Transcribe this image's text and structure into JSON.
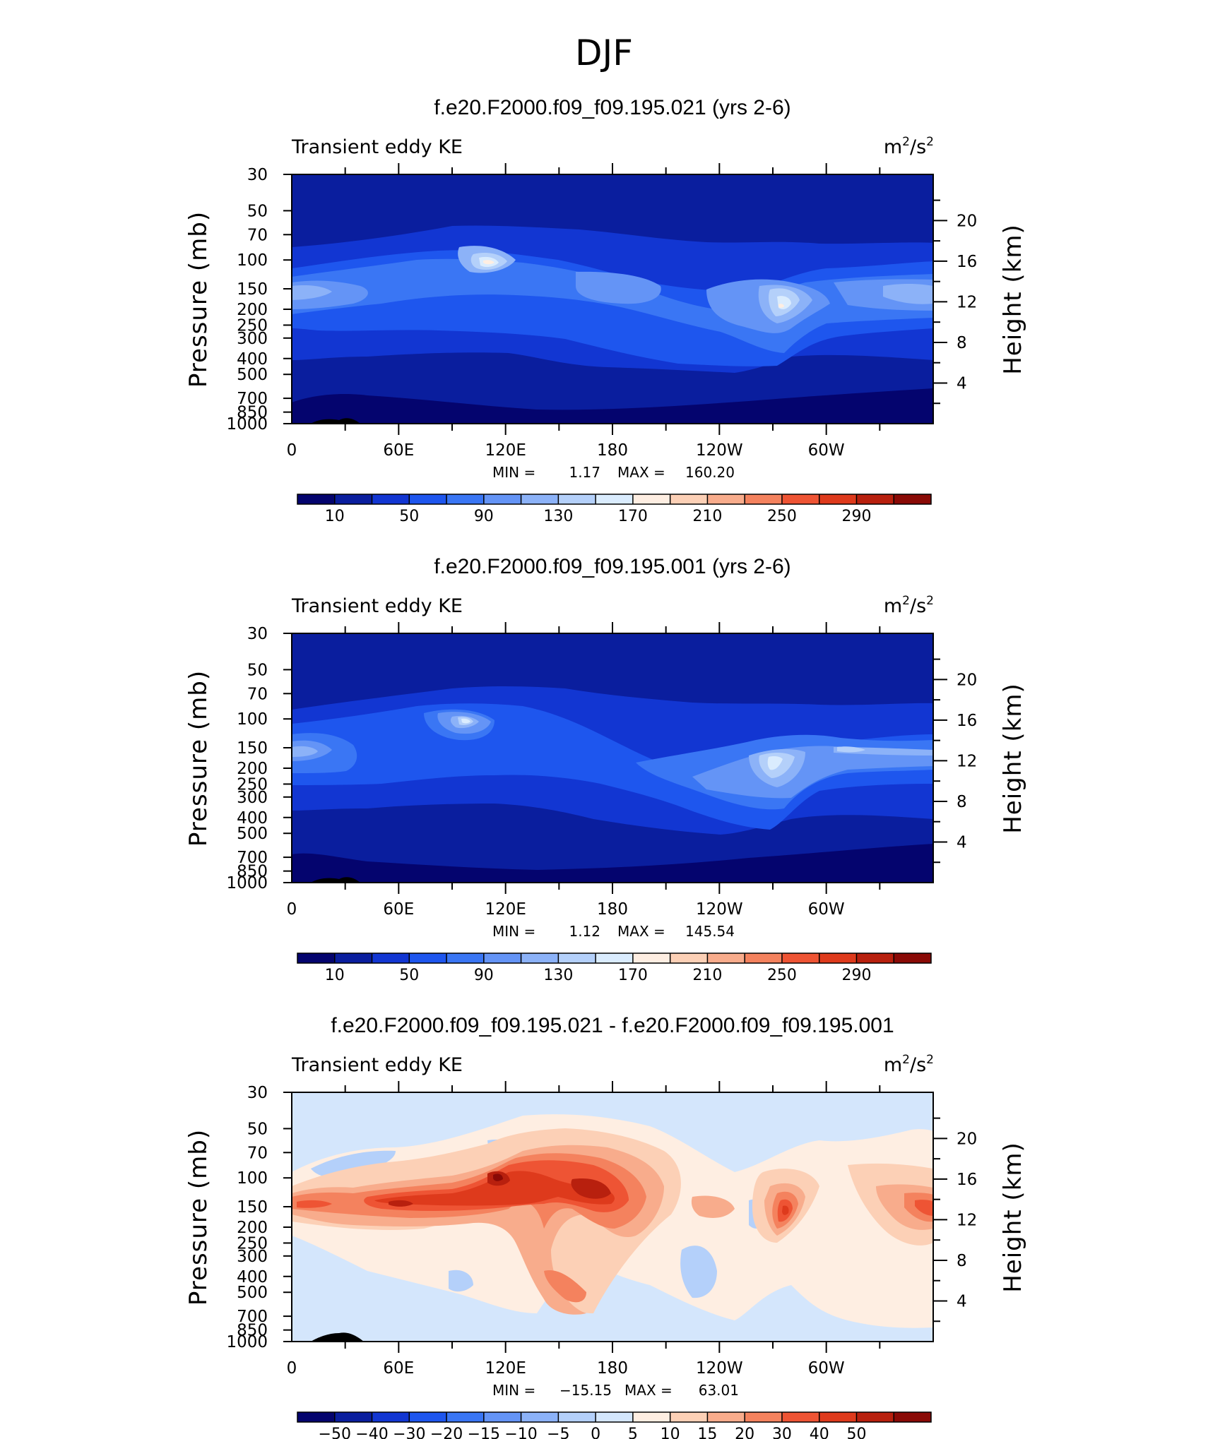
{
  "figure": {
    "title": "DJF"
  },
  "colors": {
    "seq": [
      "#04046e",
      "#0a1e9e",
      "#1236d2",
      "#1e56ee",
      "#3a76f4",
      "#6494f6",
      "#8cb2f8",
      "#b4d0fa",
      "#daecfe",
      "#feeee2",
      "#fcd0b6",
      "#f8ac8c",
      "#f4825e",
      "#ee5434",
      "#de3a1c",
      "#b8200e",
      "#8a0a06"
    ],
    "diff": [
      "#04046e",
      "#0a1e9e",
      "#1236d2",
      "#1e56ee",
      "#3a76f4",
      "#6494f6",
      "#8cb2f8",
      "#b4d0fa",
      "#d4e6fc",
      "#feeee2",
      "#fcd0b6",
      "#f8ac8c",
      "#f4825e",
      "#ee5434",
      "#de3a1c",
      "#b8200e",
      "#8a0a06"
    ]
  },
  "chart_data": [
    {
      "type": "heatmap",
      "title": "f.e20.F2000.f09_f09.195.021 (yrs 2-6)",
      "left_label": "Transient eddy KE",
      "units": "m²/s²",
      "units_base": "m",
      "units_mid": "/s",
      "units_sup": "2",
      "ylabel": "Pressure (mb)",
      "ylabel_right": "Height (km)",
      "x_ticks": [
        "0",
        "60E",
        "120E",
        "180",
        "120W",
        "60W"
      ],
      "y_ticks": [
        "30",
        "50",
        "70",
        "100",
        "150",
        "200",
        "250",
        "300",
        "400",
        "500",
        "700",
        "850",
        "1000"
      ],
      "y_ticks_right": [
        "20",
        "16",
        "12",
        "8",
        "4"
      ],
      "min_label": "MIN = ",
      "min_value": "1.17",
      "max_label": "MAX = ",
      "max_value": "160.20",
      "levels_labels": [
        "10",
        "50",
        "90",
        "130",
        "170",
        "210",
        "250",
        "290"
      ],
      "palette": "seq"
    },
    {
      "type": "heatmap",
      "title": "f.e20.F2000.f09_f09.195.001 (yrs 2-6)",
      "left_label": "Transient eddy KE",
      "units": "m²/s²",
      "units_base": "m",
      "units_mid": "/s",
      "units_sup": "2",
      "ylabel": "Pressure (mb)",
      "ylabel_right": "Height (km)",
      "x_ticks": [
        "0",
        "60E",
        "120E",
        "180",
        "120W",
        "60W"
      ],
      "y_ticks": [
        "30",
        "50",
        "70",
        "100",
        "150",
        "200",
        "250",
        "300",
        "400",
        "500",
        "700",
        "850",
        "1000"
      ],
      "y_ticks_right": [
        "20",
        "16",
        "12",
        "8",
        "4"
      ],
      "min_label": "MIN = ",
      "min_value": "1.12",
      "max_label": "MAX = ",
      "max_value": "145.54",
      "levels_labels": [
        "10",
        "50",
        "90",
        "130",
        "170",
        "210",
        "250",
        "290"
      ],
      "palette": "seq"
    },
    {
      "type": "heatmap",
      "title": "f.e20.F2000.f09_f09.195.021 - f.e20.F2000.f09_f09.195.001",
      "left_label": "Transient eddy KE",
      "units": "m²/s²",
      "units_base": "m",
      "units_mid": "/s",
      "units_sup": "2",
      "ylabel": "Pressure (mb)",
      "ylabel_right": "Height (km)",
      "x_ticks": [
        "0",
        "60E",
        "120E",
        "180",
        "120W",
        "60W"
      ],
      "y_ticks": [
        "30",
        "50",
        "70",
        "100",
        "150",
        "200",
        "250",
        "300",
        "400",
        "500",
        "700",
        "850",
        "1000"
      ],
      "y_ticks_right": [
        "20",
        "16",
        "12",
        "8",
        "4"
      ],
      "min_label": "MIN = ",
      "min_value": "−15.15",
      "max_label": "MAX = ",
      "max_value": "63.01",
      "levels_labels": [
        "−50",
        "−40",
        "−30",
        "−20",
        "−15",
        "−10",
        "−5",
        "0",
        "5",
        "10",
        "15",
        "20",
        "30",
        "40",
        "50"
      ],
      "palette": "diff"
    }
  ]
}
